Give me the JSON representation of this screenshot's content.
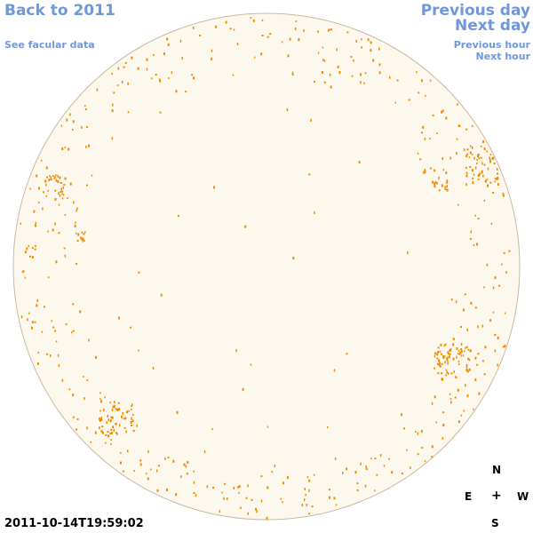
{
  "nav": {
    "back_label": "Back to 2011",
    "facular_label": "See facular data",
    "prev_day_label": "Previous day",
    "next_day_label": "Next day",
    "prev_hour_label": "Previous hour",
    "next_hour_label": "Next hour"
  },
  "timestamp": "2011-10-14T19:59:02",
  "compass": {
    "north": "N",
    "east": "E",
    "center": "+",
    "west": "W",
    "south": "S"
  },
  "colors": {
    "disk_fill": "#fdf8ed",
    "disk_border": "#c8b9a3",
    "facula": "#f08c00",
    "link": "#6f97dc"
  }
}
